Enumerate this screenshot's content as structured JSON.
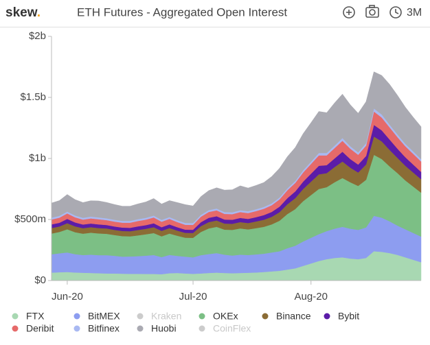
{
  "header": {
    "logo": "skew",
    "logo_dot": ".",
    "range": "3M"
  },
  "chart_data": {
    "type": "stacked_area",
    "title": "ETH Futures - Aggregated Open Interest",
    "categories": [
      null,
      null,
      "Jun-20",
      null,
      null,
      null,
      null,
      null,
      null,
      null,
      null,
      null,
      null,
      null,
      null,
      null,
      null,
      null,
      "Jul-20",
      null,
      null,
      null,
      null,
      null,
      null,
      null,
      null,
      null,
      null,
      null,
      null,
      null,
      null,
      "Aug-20",
      null,
      null,
      null,
      null,
      null,
      null,
      null,
      null,
      null,
      null,
      null,
      null,
      null,
      null
    ],
    "ylim": [
      0,
      2000000000
    ],
    "yticks": [
      {
        "value": 0,
        "label": "$0"
      },
      {
        "value": 500000000,
        "label": "$500m"
      },
      {
        "value": 1000000000,
        "label": "$1b"
      },
      {
        "value": 1500000000,
        "label": "$1.5b"
      },
      {
        "value": 2000000000,
        "label": "$2b"
      }
    ],
    "grid": false,
    "legend": "bottom",
    "series": [
      {
        "name": "FTX",
        "color": "#a8d8b2",
        "values": [
          65000000.0,
          68000000.0,
          70000000.0,
          66000000.0,
          64000000.0,
          62000000.0,
          60000000.0,
          58000000.0,
          58000000.0,
          56000000.0,
          55000000.0,
          55000000.0,
          54000000.0,
          54000000.0,
          52000000.0,
          60000000.0,
          62000000.0,
          58000000.0,
          55000000.0,
          58000000.0,
          62000000.0,
          65000000.0,
          62000000.0,
          60000000.0,
          62000000.0,
          64000000.0,
          66000000.0,
          70000000.0,
          75000000.0,
          80000000.0,
          90000000.0,
          100000000.0,
          120000000.0,
          140000000.0,
          160000000.0,
          175000000.0,
          185000000.0,
          190000000.0,
          180000000.0,
          175000000.0,
          185000000.0,
          240000000.0,
          235000000.0,
          225000000.0,
          210000000.0,
          190000000.0,
          170000000.0,
          150000000.0
        ]
      },
      {
        "name": "BitMEX",
        "color": "#8d9df0",
        "values": [
          150000000.0,
          155000000.0,
          160000000.0,
          150000000.0,
          145000000.0,
          150000000.0,
          148000000.0,
          150000000.0,
          145000000.0,
          140000000.0,
          142000000.0,
          145000000.0,
          150000000.0,
          155000000.0,
          140000000.0,
          150000000.0,
          140000000.0,
          138000000.0,
          135000000.0,
          150000000.0,
          155000000.0,
          160000000.0,
          150000000.0,
          145000000.0,
          150000000.0,
          145000000.0,
          148000000.0,
          150000000.0,
          155000000.0,
          160000000.0,
          175000000.0,
          185000000.0,
          200000000.0,
          210000000.0,
          220000000.0,
          230000000.0,
          240000000.0,
          250000000.0,
          245000000.0,
          240000000.0,
          250000000.0,
          290000000.0,
          280000000.0,
          260000000.0,
          240000000.0,
          230000000.0,
          220000000.0,
          210000000.0
        ]
      },
      {
        "name": "Kraken",
        "color": "#cccccc",
        "hidden": true
      },
      {
        "name": "OKEx",
        "color": "#7cbf85",
        "values": [
          170000000.0,
          175000000.0,
          190000000.0,
          180000000.0,
          175000000.0,
          180000000.0,
          178000000.0,
          175000000.0,
          170000000.0,
          168000000.0,
          165000000.0,
          170000000.0,
          175000000.0,
          180000000.0,
          170000000.0,
          175000000.0,
          165000000.0,
          155000000.0,
          160000000.0,
          190000000.0,
          210000000.0,
          215000000.0,
          205000000.0,
          210000000.0,
          215000000.0,
          210000000.0,
          215000000.0,
          220000000.0,
          230000000.0,
          250000000.0,
          280000000.0,
          300000000.0,
          330000000.0,
          350000000.0,
          370000000.0,
          360000000.0,
          380000000.0,
          400000000.0,
          380000000.0,
          360000000.0,
          390000000.0,
          500000000.0,
          480000000.0,
          450000000.0,
          430000000.0,
          400000000.0,
          380000000.0,
          360000000.0
        ]
      },
      {
        "name": "Binance",
        "color": "#8b6c35",
        "values": [
          45000000.0,
          45000000.0,
          50000000.0,
          48000000.0,
          45000000.0,
          45000000.0,
          44000000.0,
          44000000.0,
          42000000.0,
          42000000.0,
          42000000.0,
          44000000.0,
          45000000.0,
          48000000.0,
          45000000.0,
          45000000.0,
          42000000.0,
          40000000.0,
          40000000.0,
          48000000.0,
          52000000.0,
          52000000.0,
          50000000.0,
          50000000.0,
          52000000.0,
          52000000.0,
          55000000.0,
          58000000.0,
          62000000.0,
          70000000.0,
          80000000.0,
          90000000.0,
          100000000.0,
          110000000.0,
          120000000.0,
          115000000.0,
          125000000.0,
          135000000.0,
          120000000.0,
          110000000.0,
          125000000.0,
          150000000.0,
          145000000.0,
          135000000.0,
          125000000.0,
          120000000.0,
          115000000.0,
          110000000.0
        ]
      },
      {
        "name": "Bybit",
        "color": "#5b1ca8",
        "values": [
          30000000.0,
          30000000.0,
          35000000.0,
          32000000.0,
          30000000.0,
          30000000.0,
          30000000.0,
          28000000.0,
          28000000.0,
          28000000.0,
          28000000.0,
          30000000.0,
          30000000.0,
          32000000.0,
          30000000.0,
          30000000.0,
          28000000.0,
          26000000.0,
          26000000.0,
          32000000.0,
          35000000.0,
          35000000.0,
          33000000.0,
          33000000.0,
          34000000.0,
          34000000.0,
          35000000.0,
          38000000.0,
          40000000.0,
          45000000.0,
          50000000.0,
          55000000.0,
          60000000.0,
          65000000.0,
          70000000.0,
          65000000.0,
          70000000.0,
          80000000.0,
          70000000.0,
          65000000.0,
          70000000.0,
          95000000.0,
          90000000.0,
          85000000.0,
          75000000.0,
          70000000.0,
          65000000.0,
          60000000.0
        ]
      },
      {
        "name": "Deribit",
        "color": "#e66a6a",
        "values": [
          40000000.0,
          42000000.0,
          45000000.0,
          42000000.0,
          40000000.0,
          42000000.0,
          42000000.0,
          40000000.0,
          40000000.0,
          40000000.0,
          42000000.0,
          44000000.0,
          45000000.0,
          48000000.0,
          45000000.0,
          45000000.0,
          42000000.0,
          40000000.0,
          40000000.0,
          45000000.0,
          48000000.0,
          48000000.0,
          46000000.0,
          46000000.0,
          48000000.0,
          48000000.0,
          50000000.0,
          52000000.0,
          55000000.0,
          60000000.0,
          65000000.0,
          70000000.0,
          75000000.0,
          80000000.0,
          85000000.0,
          80000000.0,
          85000000.0,
          90000000.0,
          85000000.0,
          80000000.0,
          85000000.0,
          110000000.0,
          105000000.0,
          100000000.0,
          95000000.0,
          90000000.0,
          88000000.0,
          85000000.0
        ]
      },
      {
        "name": "Bitfinex",
        "color": "#a9b9f2",
        "values": [
          15000000.0,
          15000000.0,
          15000000.0,
          15000000.0,
          15000000.0,
          15000000.0,
          15000000.0,
          15000000.0,
          15000000.0,
          15000000.0,
          15000000.0,
          15000000.0,
          15000000.0,
          15000000.0,
          15000000.0,
          15000000.0,
          15000000.0,
          15000000.0,
          15000000.0,
          15000000.0,
          15000000.0,
          15000000.0,
          15000000.0,
          15000000.0,
          15000000.0,
          15000000.0,
          15000000.0,
          15000000.0,
          15000000.0,
          15000000.0,
          15000000.0,
          15000000.0,
          18000000.0,
          18000000.0,
          20000000.0,
          20000000.0,
          20000000.0,
          22000000.0,
          20000000.0,
          20000000.0,
          20000000.0,
          25000000.0,
          25000000.0,
          22000000.0,
          22000000.0,
          20000000.0,
          20000000.0,
          20000000.0
        ]
      },
      {
        "name": "Huobi",
        "color": "#aaaab2",
        "values": [
          120000000.0,
          125000000.0,
          140000000.0,
          130000000.0,
          125000000.0,
          130000000.0,
          135000000.0,
          130000000.0,
          125000000.0,
          120000000.0,
          120000000.0,
          125000000.0,
          130000000.0,
          140000000.0,
          130000000.0,
          135000000.0,
          145000000.0,
          150000000.0,
          140000000.0,
          150000000.0,
          160000000.0,
          170000000.0,
          180000000.0,
          185000000.0,
          200000000.0,
          190000000.0,
          195000000.0,
          200000000.0,
          220000000.0,
          240000000.0,
          260000000.0,
          275000000.0,
          300000000.0,
          320000000.0,
          340000000.0,
          330000000.0,
          350000000.0,
          360000000.0,
          340000000.0,
          320000000.0,
          340000000.0,
          300000000.0,
          320000000.0,
          330000000.0,
          320000000.0,
          300000000.0,
          280000000.0,
          265000000.0
        ]
      },
      {
        "name": "CoinFlex",
        "color": "#cccccc",
        "hidden": true
      }
    ]
  }
}
